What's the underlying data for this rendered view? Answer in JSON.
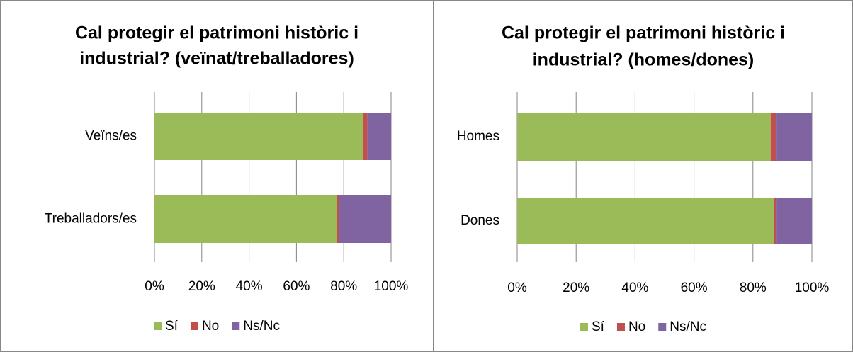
{
  "chart_data": [
    {
      "type": "bar",
      "orientation": "horizontal",
      "stacked": true,
      "title": [
        "Cal protegir el patrimoni històric i",
        "industrial? (veïnat/treballadores)"
      ],
      "categories": [
        "Veïns/es",
        "Treballadors/es"
      ],
      "series": [
        {
          "name": "Sí",
          "color": "#9bbb59",
          "values": [
            88,
            77
          ]
        },
        {
          "name": "No",
          "color": "#c0504d",
          "values": [
            2,
            1
          ]
        },
        {
          "name": "Ns/Nc",
          "color": "#8064a2",
          "values": [
            10,
            22
          ]
        }
      ],
      "xlim": [
        0,
        100
      ],
      "xticks": [
        {
          "value": 0,
          "label": "0%"
        },
        {
          "value": 20,
          "label": "20%"
        },
        {
          "value": 40,
          "label": "40%"
        },
        {
          "value": 60,
          "label": "60%"
        },
        {
          "value": 80,
          "label": "80%"
        },
        {
          "value": 100,
          "label": "100%"
        }
      ],
      "grid": true,
      "legend": "bottom"
    },
    {
      "type": "bar",
      "orientation": "horizontal",
      "stacked": true,
      "title": [
        "Cal protegir el patrimoni històric i",
        "industrial? (homes/dones)"
      ],
      "categories": [
        "Homes",
        "Dones"
      ],
      "series": [
        {
          "name": "Sí",
          "color": "#9bbb59",
          "values": [
            86,
            87
          ]
        },
        {
          "name": "No",
          "color": "#c0504d",
          "values": [
            2,
            1
          ]
        },
        {
          "name": "Ns/Nc",
          "color": "#8064a2",
          "values": [
            12,
            12
          ]
        }
      ],
      "xlim": [
        0,
        100
      ],
      "xticks": [
        {
          "value": 0,
          "label": "0%"
        },
        {
          "value": 20,
          "label": "20%"
        },
        {
          "value": 40,
          "label": "40%"
        },
        {
          "value": 60,
          "label": "60%"
        },
        {
          "value": 80,
          "label": "80%"
        },
        {
          "value": 100,
          "label": "100%"
        }
      ],
      "grid": true,
      "legend": "bottom"
    }
  ]
}
